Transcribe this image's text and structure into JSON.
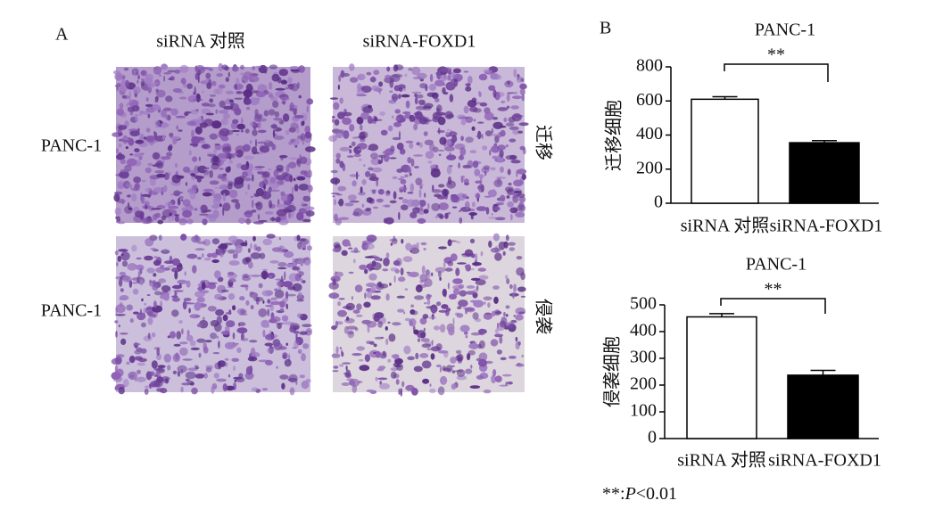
{
  "panel_a": {
    "label": "A",
    "columns": [
      "siRNA 对照",
      "siRNA-FOXD1"
    ],
    "rows": [
      "PANC-1",
      "PANC-1"
    ],
    "conditions": [
      "迁移",
      "侵袭"
    ]
  },
  "panel_b": {
    "label": "B"
  },
  "chart_data": [
    {
      "type": "bar",
      "title": "PANC-1",
      "ylabel": "迁移细胞",
      "categories": [
        "siRNA 对照",
        "siRNA-FOXD1"
      ],
      "values": [
        610,
        355
      ],
      "errors": [
        15,
        12
      ],
      "colors": [
        "#ffffff",
        "#000000"
      ],
      "ylim": [
        0,
        800
      ],
      "yticks": [
        0,
        200,
        400,
        600,
        800
      ],
      "annotation": "**"
    },
    {
      "type": "bar",
      "title": "PANC-1",
      "ylabel": "侵袭细胞",
      "categories": [
        "siRNA 对照",
        "siRNA-FOXD1"
      ],
      "values": [
        455,
        237
      ],
      "errors": [
        12,
        18
      ],
      "colors": [
        "#ffffff",
        "#000000"
      ],
      "ylim": [
        0,
        500
      ],
      "yticks": [
        0,
        100,
        200,
        300,
        400,
        500
      ],
      "annotation": "**"
    }
  ],
  "footnote": {
    "marker": "**:",
    "symbol": "P",
    "text": "<0.01"
  }
}
